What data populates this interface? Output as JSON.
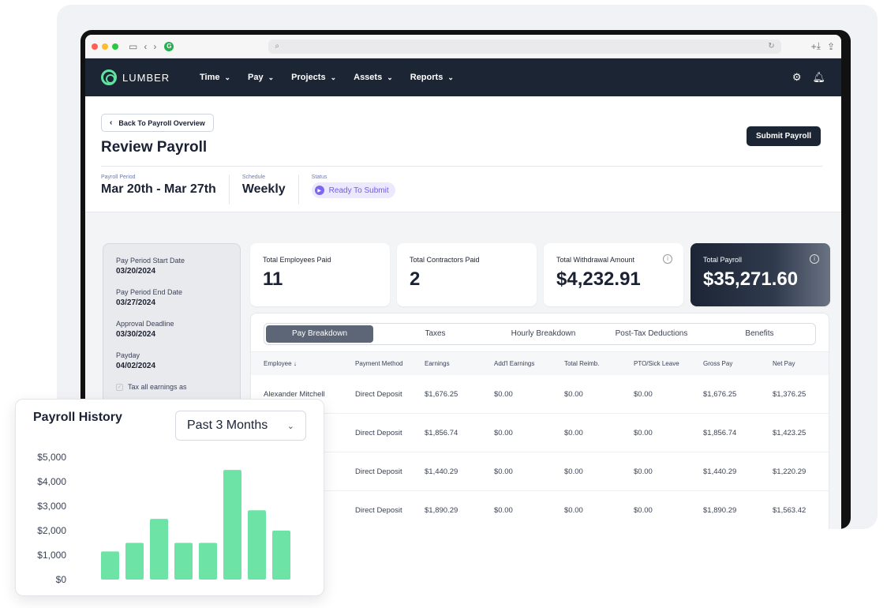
{
  "app": {
    "logo_text": "LUMBER"
  },
  "nav": [
    {
      "label": "Time"
    },
    {
      "label": "Pay"
    },
    {
      "label": "Projects"
    },
    {
      "label": "Assets"
    },
    {
      "label": "Reports"
    }
  ],
  "header": {
    "back_label": "Back To Payroll Overview",
    "title": "Review Payroll",
    "submit_label": "Submit Payroll"
  },
  "meta": {
    "period_label": "Payroll Period",
    "period_value": "Mar 20th - Mar 27th",
    "schedule_label": "Schedule",
    "schedule_value": "Weekly",
    "status_label": "Status",
    "status_value": "Ready To Submit"
  },
  "sidebar": [
    {
      "label": "Pay Period Start Date",
      "value": "03/20/2024"
    },
    {
      "label": "Pay Period End Date",
      "value": "03/27/2024"
    },
    {
      "label": "Approval Deadline",
      "value": "03/30/2024"
    },
    {
      "label": "Payday",
      "value": "04/02/2024"
    }
  ],
  "sidebar_check": "Tax all earnings as",
  "cards": [
    {
      "label": "Total Employees Paid",
      "value": "11"
    },
    {
      "label": "Total Contractors Paid",
      "value": "2"
    },
    {
      "label": "Total Withdrawal Amount",
      "value": "$4,232.91"
    },
    {
      "label": "Total Payroll",
      "value": "$35,271.60"
    }
  ],
  "tabs": [
    "Pay Breakdown",
    "Taxes",
    "Hourly Breakdown",
    "Post-Tax Deductions",
    "Benefits"
  ],
  "table": {
    "headers": [
      "Employee",
      "Payment Method",
      "Earnings",
      "Add'l Earnings",
      "Total Reimb.",
      "PTO/Sick Leave",
      "Gross Pay",
      "Net Pay"
    ],
    "rows": [
      [
        "Alexander Mitchell",
        "Direct Deposit",
        "$1,676.25",
        "$0.00",
        "$0.00",
        "$0.00",
        "$1,676.25",
        "$1,376.25"
      ],
      [
        "",
        "Direct Deposit",
        "$1,856.74",
        "$0.00",
        "$0.00",
        "$0.00",
        "$1,856.74",
        "$1,423.25"
      ],
      [
        "",
        "Direct Deposit",
        "$1,440.29",
        "$0.00",
        "$0.00",
        "$0.00",
        "$1,440.29",
        "$1,220.29"
      ],
      [
        "",
        "Direct Deposit",
        "$1,890.29",
        "$0.00",
        "$0.00",
        "$0.00",
        "$1,890.29",
        "$1,563.42"
      ]
    ]
  },
  "history": {
    "title": "Payroll History",
    "range": "Past 3 Months"
  },
  "chart_data": {
    "type": "bar",
    "values": [
      1150,
      1500,
      2480,
      1500,
      1500,
      4480,
      2830,
      2000
    ],
    "ylim": [
      0,
      5000
    ],
    "yticks": [
      "$0",
      "$1,000",
      "$2,000",
      "$3,000",
      "$4,000",
      "$5,000"
    ],
    "bar_color": "#6ee3a6",
    "grid": false
  },
  "colors": {
    "nav_bg": "#1c2534",
    "accent": "#6ee3a6",
    "status": "#7b68ee"
  }
}
